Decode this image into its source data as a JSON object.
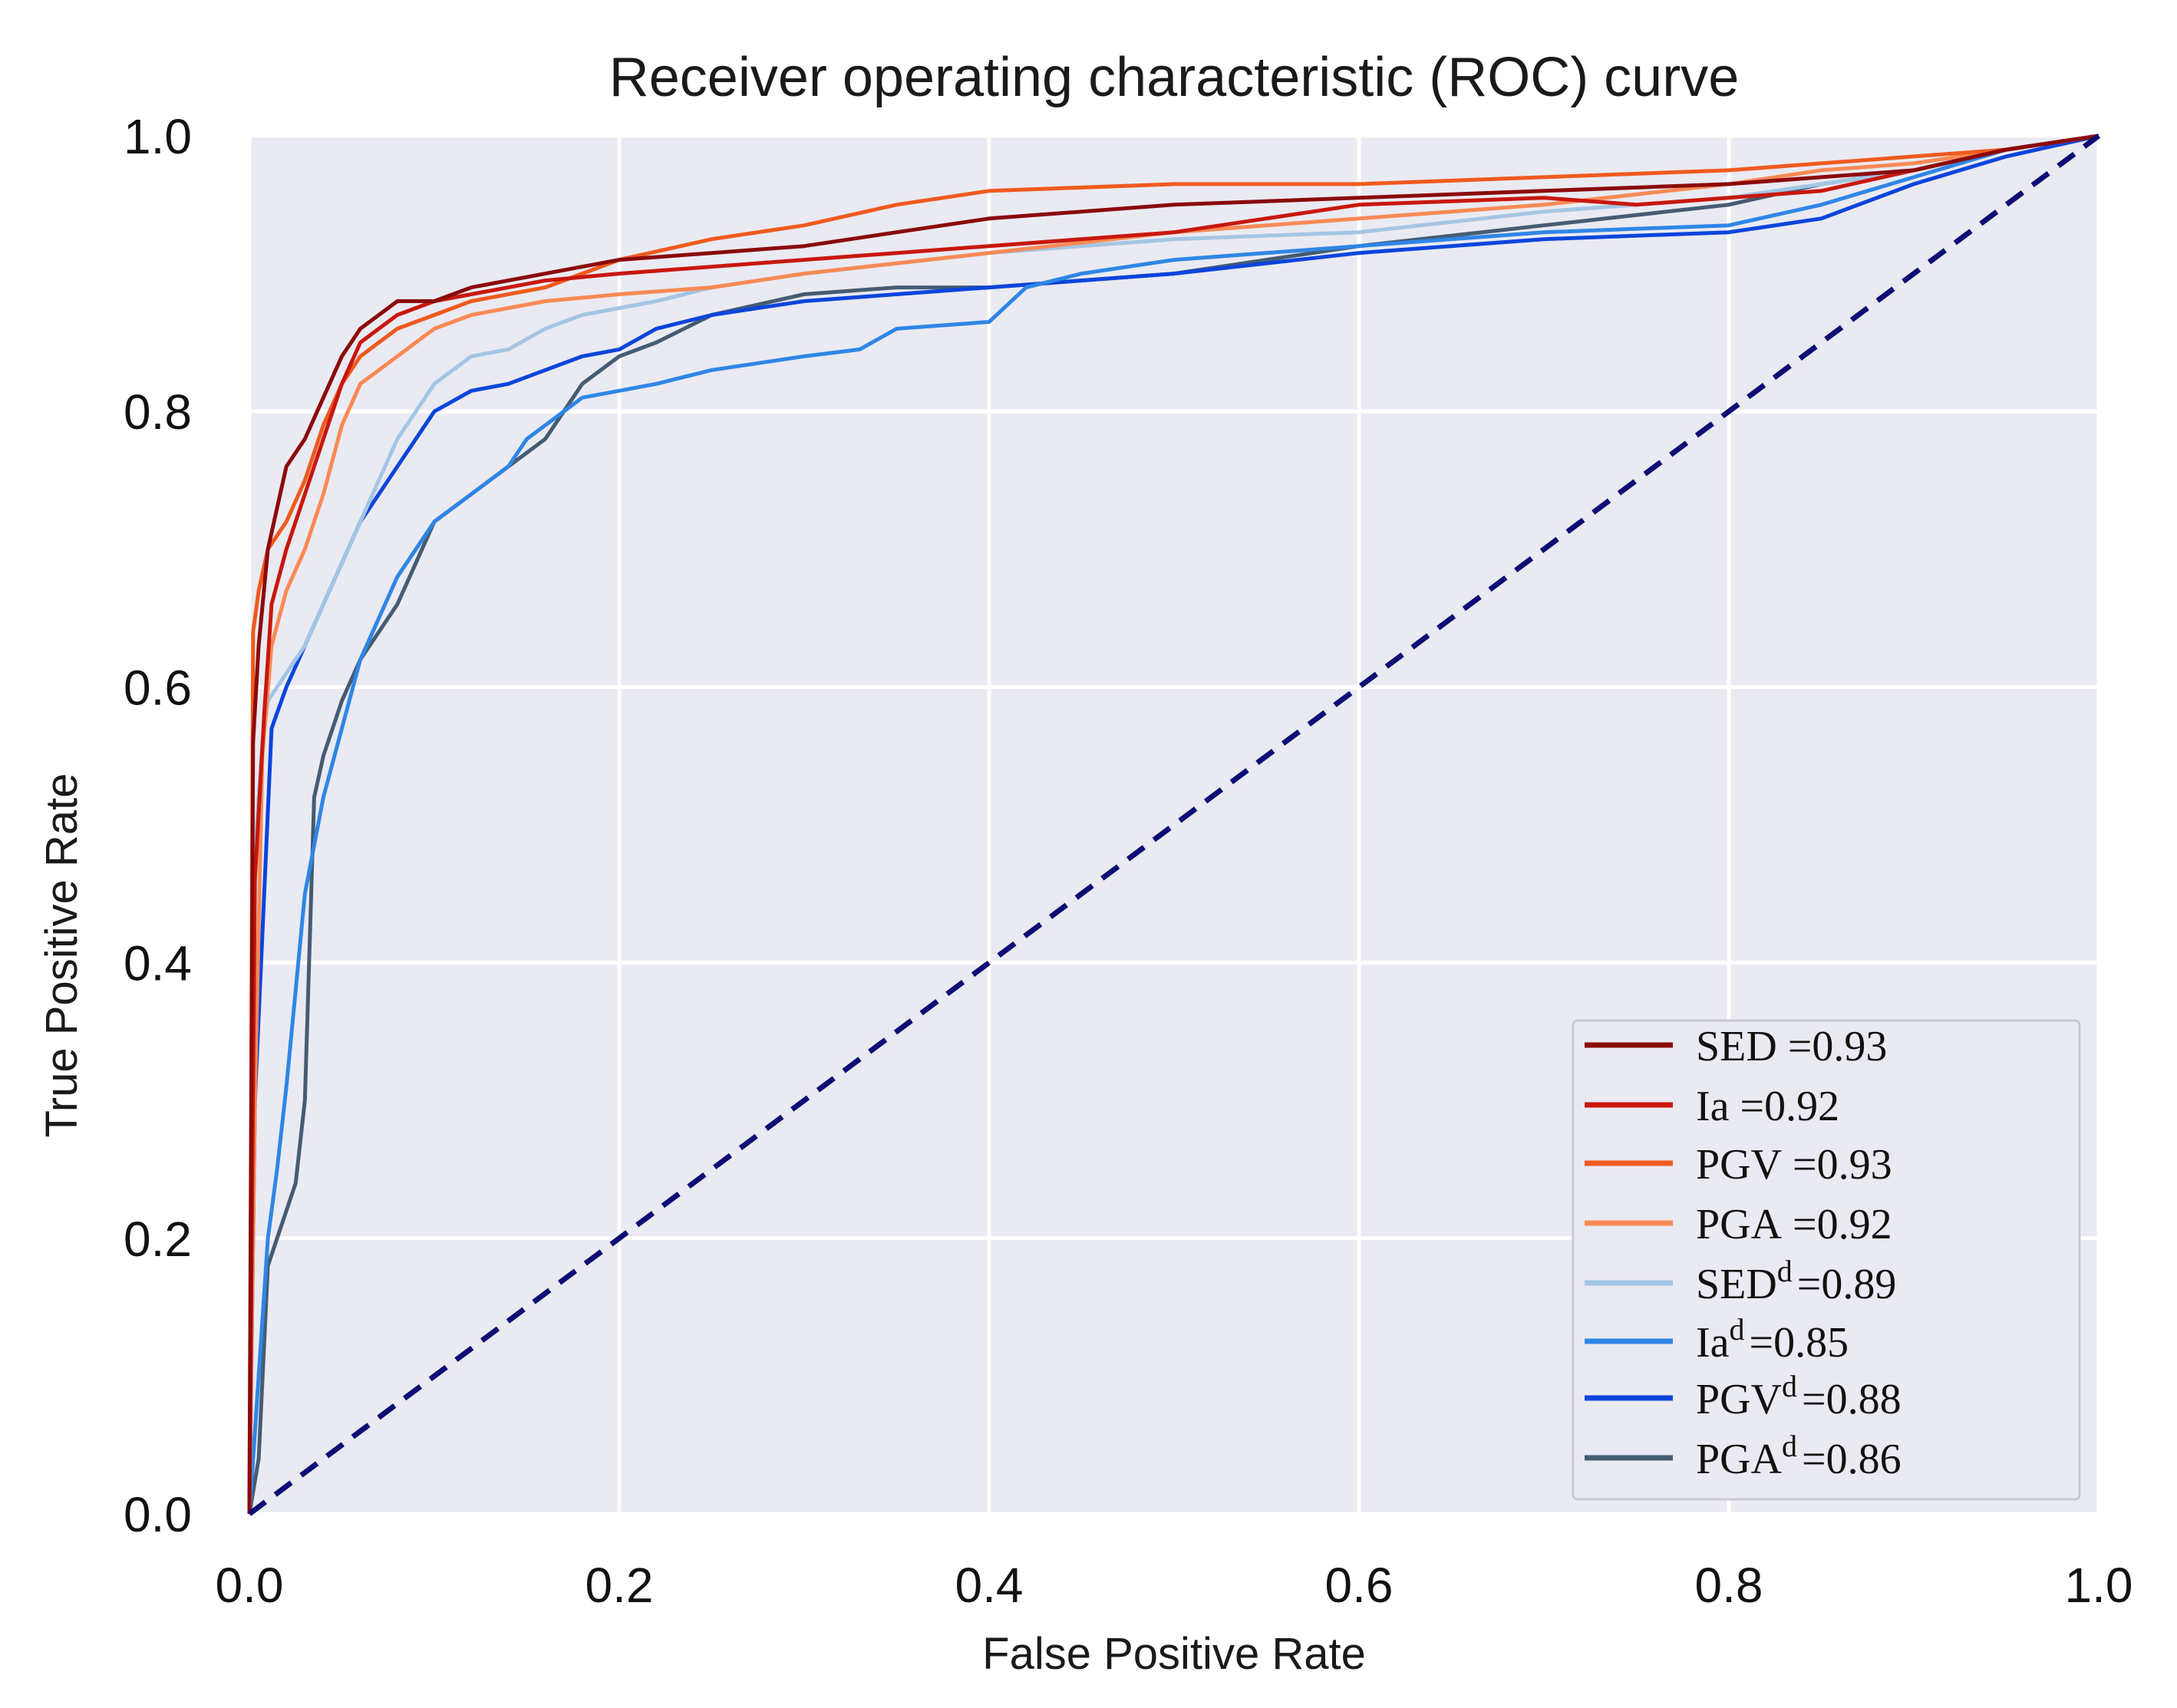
{
  "chart_data": {
    "type": "line",
    "title": "Receiver operating characteristic (ROC) curve",
    "xlabel": "False Positive Rate",
    "ylabel": "True Positive Rate",
    "xlim": [
      0.0,
      1.0
    ],
    "ylim": [
      0.0,
      1.0
    ],
    "xticks": [
      "0.0",
      "0.2",
      "0.4",
      "0.6",
      "0.8",
      "1.0"
    ],
    "yticks": [
      "0.0",
      "0.2",
      "0.4",
      "0.6",
      "0.8",
      "1.0"
    ],
    "grid": true,
    "legend_position": "bottom-right",
    "diagonal": {
      "x": [
        0,
        1
      ],
      "y": [
        0,
        1
      ],
      "color": "#0d0d75",
      "style": "dashed"
    },
    "series": [
      {
        "name": "SED",
        "sup": "",
        "value": "=0.93",
        "color": "#8b0a0a",
        "x": [
          0,
          0.002,
          0.005,
          0.01,
          0.015,
          0.02,
          0.03,
          0.04,
          0.05,
          0.06,
          0.07,
          0.08,
          0.1,
          0.12,
          0.14,
          0.16,
          0.18,
          0.2,
          0.25,
          0.3,
          0.35,
          0.4,
          0.5,
          0.6,
          0.7,
          0.8,
          0.85,
          0.9,
          0.95,
          1.0
        ],
        "y": [
          0,
          0.56,
          0.63,
          0.7,
          0.73,
          0.76,
          0.78,
          0.81,
          0.84,
          0.86,
          0.87,
          0.88,
          0.88,
          0.89,
          0.895,
          0.9,
          0.905,
          0.91,
          0.915,
          0.92,
          0.93,
          0.94,
          0.95,
          0.955,
          0.96,
          0.965,
          0.97,
          0.975,
          0.99,
          1.0
        ]
      },
      {
        "name": "Ia",
        "sup": "",
        "value": "=0.92",
        "color": "#c8170d",
        "x": [
          0,
          0.003,
          0.008,
          0.012,
          0.02,
          0.03,
          0.04,
          0.05,
          0.06,
          0.08,
          0.1,
          0.12,
          0.14,
          0.16,
          0.2,
          0.25,
          0.3,
          0.35,
          0.4,
          0.5,
          0.6,
          0.7,
          0.75,
          0.8,
          0.85,
          0.9,
          0.95,
          1.0
        ],
        "y": [
          0,
          0.46,
          0.58,
          0.66,
          0.7,
          0.74,
          0.78,
          0.82,
          0.85,
          0.87,
          0.88,
          0.885,
          0.89,
          0.895,
          0.9,
          0.905,
          0.91,
          0.915,
          0.92,
          0.93,
          0.95,
          0.955,
          0.95,
          0.955,
          0.96,
          0.975,
          0.99,
          1.0
        ]
      },
      {
        "name": "PGV",
        "sup": "",
        "value": "=0.93",
        "color": "#f05a1e",
        "x": [
          0,
          0.002,
          0.005,
          0.01,
          0.02,
          0.03,
          0.04,
          0.05,
          0.06,
          0.08,
          0.1,
          0.12,
          0.14,
          0.16,
          0.18,
          0.2,
          0.25,
          0.3,
          0.35,
          0.4,
          0.5,
          0.6,
          0.7,
          0.8,
          0.85,
          0.9,
          0.95,
          1.0
        ],
        "y": [
          0,
          0.64,
          0.67,
          0.7,
          0.72,
          0.75,
          0.79,
          0.82,
          0.84,
          0.86,
          0.87,
          0.88,
          0.885,
          0.89,
          0.9,
          0.91,
          0.925,
          0.935,
          0.95,
          0.96,
          0.965,
          0.965,
          0.97,
          0.975,
          0.98,
          0.985,
          0.99,
          1.0
        ]
      },
      {
        "name": "PGA",
        "sup": "",
        "value": "=0.92",
        "color": "#fa8a55",
        "x": [
          0,
          0.003,
          0.007,
          0.012,
          0.02,
          0.03,
          0.04,
          0.05,
          0.06,
          0.08,
          0.1,
          0.12,
          0.14,
          0.16,
          0.2,
          0.25,
          0.3,
          0.4,
          0.5,
          0.6,
          0.7,
          0.8,
          0.85,
          0.9,
          0.95,
          1.0
        ],
        "y": [
          0,
          0.3,
          0.55,
          0.63,
          0.67,
          0.7,
          0.74,
          0.79,
          0.82,
          0.84,
          0.86,
          0.87,
          0.875,
          0.88,
          0.885,
          0.89,
          0.9,
          0.915,
          0.93,
          0.94,
          0.95,
          0.965,
          0.975,
          0.98,
          0.99,
          1.0
        ]
      },
      {
        "name": "SED",
        "sup": "d",
        "value": "=0.89",
        "color": "#a3c5e4",
        "x": [
          0,
          0.003,
          0.007,
          0.01,
          0.02,
          0.03,
          0.04,
          0.05,
          0.06,
          0.07,
          0.08,
          0.09,
          0.1,
          0.12,
          0.14,
          0.16,
          0.18,
          0.2,
          0.22,
          0.25,
          0.3,
          0.4,
          0.5,
          0.6,
          0.7,
          0.8,
          0.85,
          0.9,
          0.95,
          1.0
        ],
        "y": [
          0,
          0.48,
          0.56,
          0.59,
          0.61,
          0.63,
          0.66,
          0.69,
          0.72,
          0.75,
          0.78,
          0.8,
          0.82,
          0.84,
          0.845,
          0.86,
          0.87,
          0.875,
          0.88,
          0.89,
          0.9,
          0.915,
          0.925,
          0.93,
          0.945,
          0.955,
          0.965,
          0.975,
          0.99,
          1.0
        ]
      },
      {
        "name": "Ia",
        "sup": "d",
        "value": "=0.85",
        "color": "#2f86e6",
        "x": [
          0,
          0.005,
          0.01,
          0.015,
          0.02,
          0.025,
          0.03,
          0.04,
          0.05,
          0.06,
          0.07,
          0.08,
          0.09,
          0.1,
          0.12,
          0.14,
          0.15,
          0.16,
          0.17,
          0.18,
          0.2,
          0.22,
          0.25,
          0.3,
          0.33,
          0.35,
          0.4,
          0.42,
          0.45,
          0.5,
          0.6,
          0.7,
          0.8,
          0.85,
          0.9,
          0.95,
          1.0
        ],
        "y": [
          0,
          0.1,
          0.2,
          0.25,
          0.31,
          0.38,
          0.45,
          0.52,
          0.57,
          0.62,
          0.65,
          0.68,
          0.7,
          0.72,
          0.74,
          0.76,
          0.78,
          0.79,
          0.8,
          0.81,
          0.815,
          0.82,
          0.83,
          0.84,
          0.845,
          0.86,
          0.865,
          0.89,
          0.9,
          0.91,
          0.92,
          0.93,
          0.935,
          0.95,
          0.97,
          0.99,
          1.0
        ]
      },
      {
        "name": "PGV",
        "sup": "d",
        "value": "=0.88",
        "color": "#0b45dc",
        "x": [
          0,
          0.003,
          0.008,
          0.012,
          0.02,
          0.03,
          0.04,
          0.05,
          0.06,
          0.07,
          0.08,
          0.09,
          0.1,
          0.12,
          0.14,
          0.16,
          0.18,
          0.2,
          0.22,
          0.25,
          0.3,
          0.35,
          0.4,
          0.45,
          0.5,
          0.6,
          0.7,
          0.8,
          0.85,
          0.9,
          0.95,
          1.0
        ],
        "y": [
          0,
          0.3,
          0.45,
          0.57,
          0.6,
          0.63,
          0.66,
          0.69,
          0.72,
          0.74,
          0.76,
          0.78,
          0.8,
          0.815,
          0.82,
          0.83,
          0.84,
          0.845,
          0.86,
          0.87,
          0.88,
          0.885,
          0.89,
          0.895,
          0.9,
          0.915,
          0.925,
          0.93,
          0.94,
          0.965,
          0.985,
          1.0
        ]
      },
      {
        "name": "PGA",
        "sup": "d",
        "value": "=0.86",
        "color": "#455c72",
        "x": [
          0,
          0.005,
          0.01,
          0.015,
          0.02,
          0.025,
          0.03,
          0.035,
          0.04,
          0.05,
          0.06,
          0.07,
          0.08,
          0.09,
          0.1,
          0.12,
          0.14,
          0.16,
          0.17,
          0.18,
          0.2,
          0.22,
          0.25,
          0.3,
          0.35,
          0.4,
          0.5,
          0.6,
          0.7,
          0.8,
          0.85,
          0.9,
          0.95,
          1.0
        ],
        "y": [
          0,
          0.04,
          0.18,
          0.2,
          0.22,
          0.24,
          0.3,
          0.52,
          0.55,
          0.59,
          0.62,
          0.64,
          0.66,
          0.69,
          0.72,
          0.74,
          0.76,
          0.78,
          0.8,
          0.82,
          0.84,
          0.85,
          0.87,
          0.885,
          0.89,
          0.89,
          0.9,
          0.92,
          0.935,
          0.95,
          0.965,
          0.975,
          0.99,
          1.0
        ]
      }
    ]
  }
}
